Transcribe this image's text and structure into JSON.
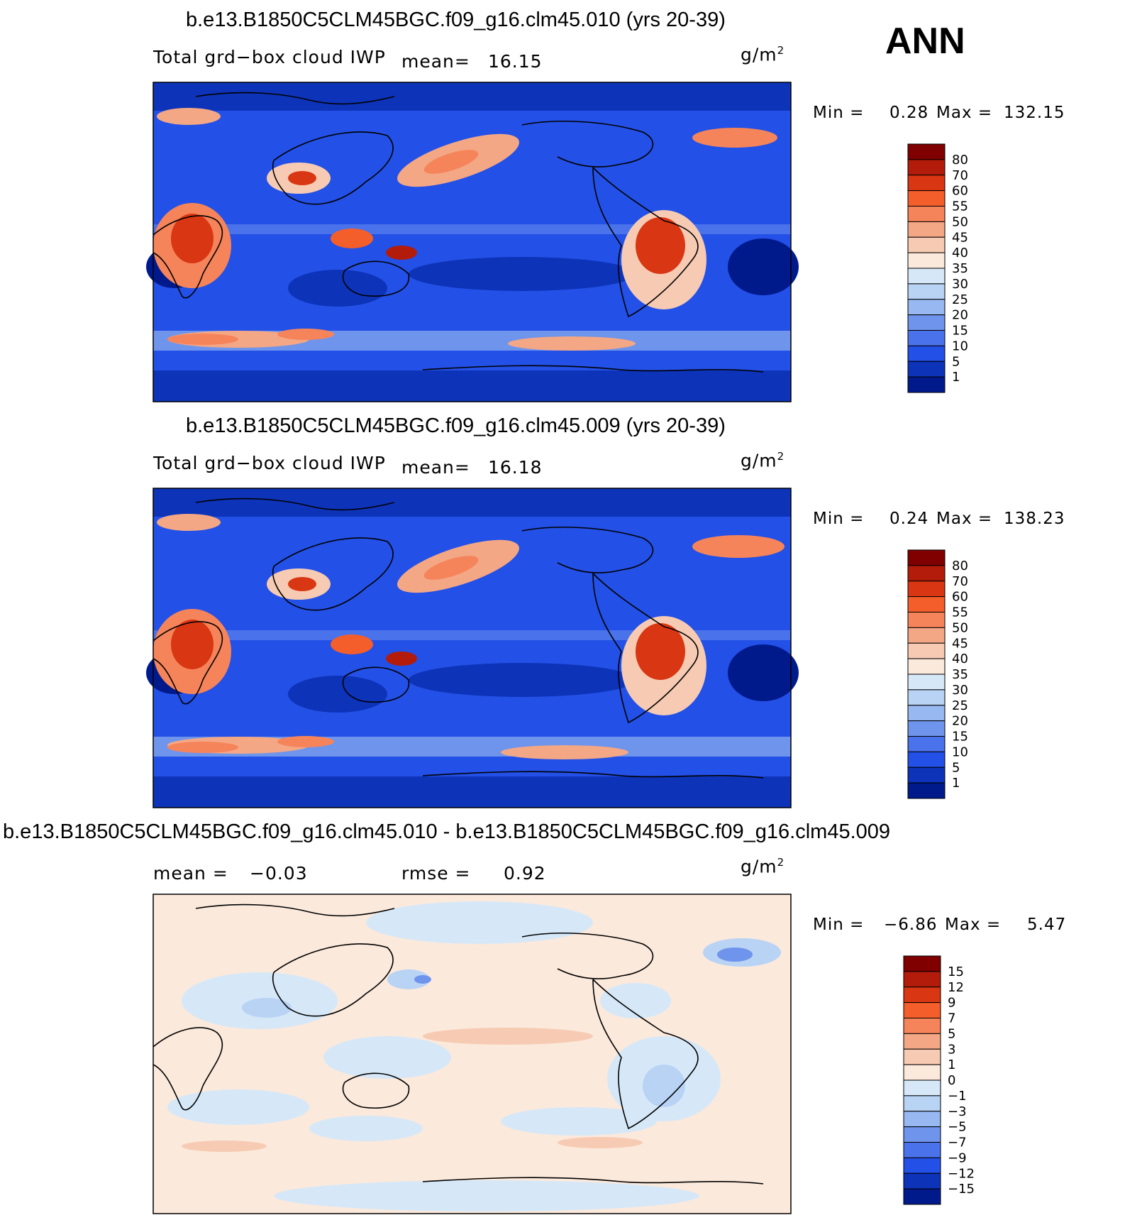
{
  "season": "ANN",
  "panels": [
    {
      "title": "b.e13.B1850C5CLM45BGC.f09_g16.clm45.010 (yrs 20-39)",
      "variable": "Total grd−box cloud IWP",
      "stat1_label": "mean=",
      "stat1_value": "16.15",
      "stat2_label": "",
      "stat2_value": "",
      "unit": "g/m",
      "unit_exp": "2",
      "min_label": "Min =",
      "min_value": "0.28",
      "max_label": "Max =",
      "max_value": "132.15",
      "colorbar": {
        "labels": [
          "80",
          "70",
          "60",
          "55",
          "50",
          "45",
          "40",
          "35",
          "30",
          "25",
          "20",
          "15",
          "10",
          "5",
          "1"
        ],
        "colors": [
          "#800000",
          "#b31c0a",
          "#d93613",
          "#f45e2a",
          "#f6845a",
          "#f3a785",
          "#f7cbb3",
          "#fbe9dc",
          "#d6e8f8",
          "#b9d3f5",
          "#97b8f0",
          "#6f94ec",
          "#4a72ea",
          "#2350e6",
          "#0d33b9",
          "#001a8c"
        ]
      }
    },
    {
      "title": "b.e13.B1850C5CLM45BGC.f09_g16.clm45.009 (yrs 20-39)",
      "variable": "Total grd−box cloud IWP",
      "stat1_label": "mean=",
      "stat1_value": "16.18",
      "stat2_label": "",
      "stat2_value": "",
      "unit": "g/m",
      "unit_exp": "2",
      "min_label": "Min =",
      "min_value": "0.24",
      "max_label": "Max =",
      "max_value": "138.23",
      "colorbar": {
        "labels": [
          "80",
          "70",
          "60",
          "55",
          "50",
          "45",
          "40",
          "35",
          "30",
          "25",
          "20",
          "15",
          "10",
          "5",
          "1"
        ],
        "colors": [
          "#800000",
          "#b31c0a",
          "#d93613",
          "#f45e2a",
          "#f6845a",
          "#f3a785",
          "#f7cbb3",
          "#fbe9dc",
          "#d6e8f8",
          "#b9d3f5",
          "#97b8f0",
          "#6f94ec",
          "#4a72ea",
          "#2350e6",
          "#0d33b9",
          "#001a8c"
        ]
      }
    },
    {
      "title": "b.e13.B1850C5CLM45BGC.f09_g16.clm45.010 - b.e13.B1850C5CLM45BGC.f09_g16.clm45.009",
      "variable": "",
      "stat1_label": "mean =",
      "stat1_value": "−0.03",
      "stat2_label": "rmse =",
      "stat2_value": "0.92",
      "unit": "g/m",
      "unit_exp": "2",
      "min_label": "Min =",
      "min_value": "−6.86",
      "max_label": "Max =",
      "max_value": "5.47",
      "colorbar": {
        "labels": [
          "15",
          "12",
          "9",
          "7",
          "5",
          "3",
          "1",
          "0",
          "−1",
          "−3",
          "−5",
          "−7",
          "−9",
          "−12",
          "−15"
        ],
        "colors": [
          "#800000",
          "#b31c0a",
          "#d93613",
          "#f45e2a",
          "#f6845a",
          "#f3a785",
          "#f7cbb3",
          "#fbe9dc",
          "#d6e8f8",
          "#b9d3f5",
          "#97b8f0",
          "#6f94ec",
          "#4a72ea",
          "#2350e6",
          "#0d33b9",
          "#001a8c"
        ]
      }
    }
  ],
  "colors": {
    "ocean_mid": "#2350e6",
    "ocean_deep": "#0d33b9",
    "diff_bg": "#fbe9dc",
    "diff_blue": "#d6e8f8"
  }
}
